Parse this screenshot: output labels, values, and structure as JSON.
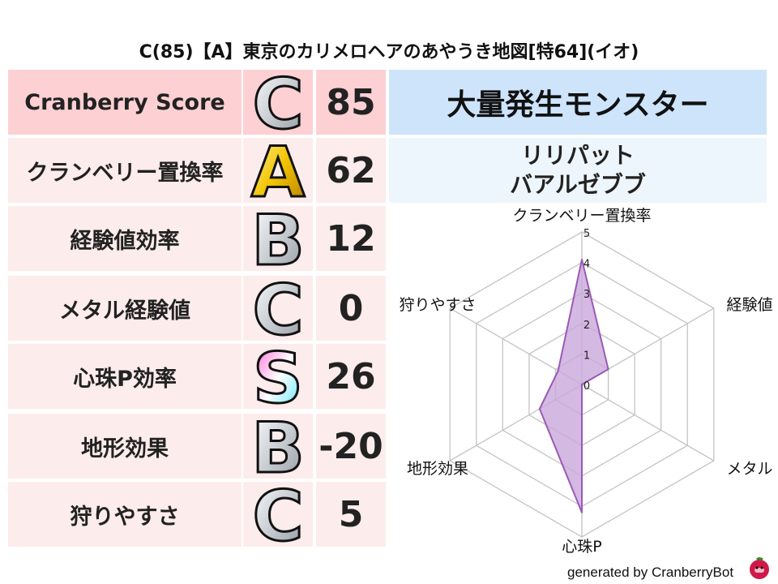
{
  "title": "C(85)【A】東京のカリメロヘアのあやうき地図[特64](イオ)",
  "rows": [
    {
      "label": "Cranberry Score",
      "grade": "C",
      "grade_style": "silver",
      "value": "85"
    },
    {
      "label": "クランベリー置換率",
      "grade": "A",
      "grade_style": "gold",
      "value": "62"
    },
    {
      "label": "経験値効率",
      "grade": "B",
      "grade_style": "silver",
      "value": "12"
    },
    {
      "label": "メタル経験値",
      "grade": "C",
      "grade_style": "silver",
      "value": "0"
    },
    {
      "label": "心珠P効率",
      "grade": "S",
      "grade_style": "rainbow",
      "value": "26"
    },
    {
      "label": "地形効果",
      "grade": "B",
      "grade_style": "silver",
      "value": "-20"
    },
    {
      "label": "狩りやすさ",
      "grade": "C",
      "grade_style": "silver",
      "value": "5"
    }
  ],
  "monster_header": "大量発生モンスター",
  "monsters": [
    "リリパット",
    "バアルゼブブ"
  ],
  "chart_data": {
    "type": "radar",
    "axes": [
      "クランベリー置換率",
      "経験値",
      "メタル",
      "心珠P",
      "地形効果",
      "狩りやすさ"
    ],
    "values": [
      4.1,
      1.0,
      0,
      4.2,
      1.6,
      0.9
    ],
    "rlim": [
      0,
      5
    ],
    "ticks": [
      "0",
      "1",
      "2",
      "3",
      "4",
      "5"
    ],
    "grid": true,
    "fill_color": "#c9a7dc",
    "line_color": "#9b59b6"
  },
  "footer": "generated by CranberryBot",
  "colors": {
    "header_row": "#fdd0d3",
    "row": "#fdecec",
    "monster_header": "#cde4fb",
    "monster_names": "#eef6fd"
  }
}
